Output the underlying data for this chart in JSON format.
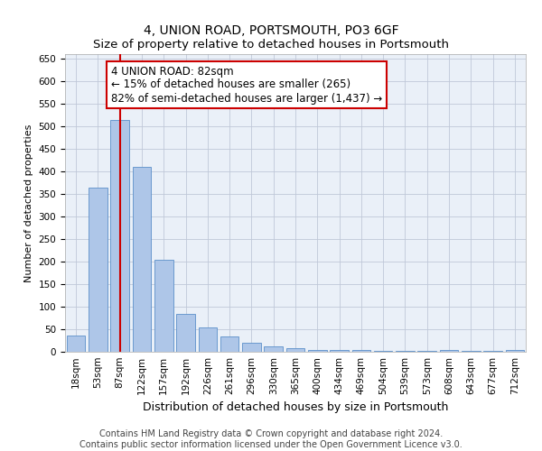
{
  "title": "4, UNION ROAD, PORTSMOUTH, PO3 6GF",
  "subtitle": "Size of property relative to detached houses in Portsmouth",
  "xlabel": "Distribution of detached houses by size in Portsmouth",
  "ylabel": "Number of detached properties",
  "categories": [
    "18sqm",
    "53sqm",
    "87sqm",
    "122sqm",
    "157sqm",
    "192sqm",
    "226sqm",
    "261sqm",
    "296sqm",
    "330sqm",
    "365sqm",
    "400sqm",
    "434sqm",
    "469sqm",
    "504sqm",
    "539sqm",
    "573sqm",
    "608sqm",
    "643sqm",
    "677sqm",
    "712sqm"
  ],
  "values": [
    37,
    365,
    515,
    410,
    205,
    85,
    55,
    35,
    20,
    12,
    8,
    5,
    5,
    4,
    3,
    2,
    2,
    5,
    2,
    2,
    5
  ],
  "bar_color": "#aec6e8",
  "bar_edge_color": "#5b8fc9",
  "vline_x_index": 2,
  "vline_color": "#cc0000",
  "annotation_line1": "4 UNION ROAD: 82sqm",
  "annotation_line2": "← 15% of detached houses are smaller (265)",
  "annotation_line3": "82% of semi-detached houses are larger (1,437) →",
  "annotation_box_color": "#ffffff",
  "annotation_box_edge": "#cc0000",
  "ylim": [
    0,
    660
  ],
  "yticks": [
    0,
    50,
    100,
    150,
    200,
    250,
    300,
    350,
    400,
    450,
    500,
    550,
    600,
    650
  ],
  "background_color": "#eaf0f8",
  "footer_text": "Contains HM Land Registry data © Crown copyright and database right 2024.\nContains public sector information licensed under the Open Government Licence v3.0.",
  "title_fontsize": 10,
  "subtitle_fontsize": 9.5,
  "xlabel_fontsize": 9,
  "ylabel_fontsize": 8,
  "tick_fontsize": 7.5,
  "annotation_fontsize": 8.5,
  "footer_fontsize": 7
}
